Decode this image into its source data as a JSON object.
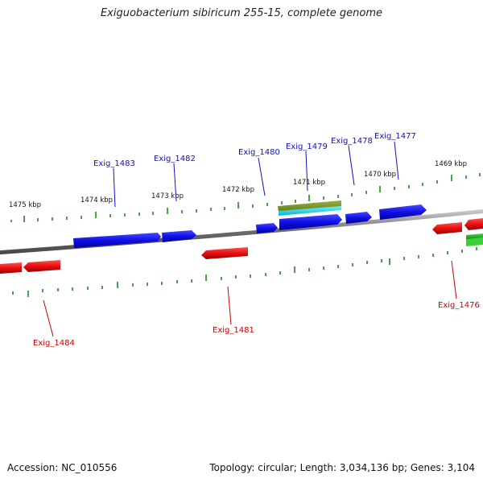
{
  "title": "Exiguobacterium sibiricum 255-15, complete genome",
  "footer": {
    "accession_label": "Accession:",
    "accession_value": "NC_010556",
    "topology_label": "Topology:",
    "topology_value": "circular",
    "length_label": "Length:",
    "length_value": "3,034,136 bp",
    "genes_label": "Genes:",
    "genes_value": "3,104"
  },
  "colors": {
    "forward_gene": "#1010e6",
    "reverse_gene": "#e61010",
    "rna_top": "#6a8a20",
    "rna_bottom": "#20c8d8",
    "green_gene": "#1a9a1a",
    "tick": "#1a8a1a",
    "backbone": "#7a7a7a",
    "forward_label": "#1010c8",
    "reverse_label": "#cc0000"
  },
  "kbp_labels": [
    "1475 kbp",
    "1474 kbp",
    "1473 kbp",
    "1472 kbp",
    "1471 kbp",
    "1470 kbp",
    "1469 kbp"
  ],
  "forward_labels": [
    "Exig_1483",
    "Exig_1482",
    "Exig_1480",
    "Exig_1479",
    "Exig_1478",
    "Exig_1477"
  ],
  "reverse_labels": [
    "Exig_1484",
    "Exig_1481",
    "Exig_1476"
  ]
}
